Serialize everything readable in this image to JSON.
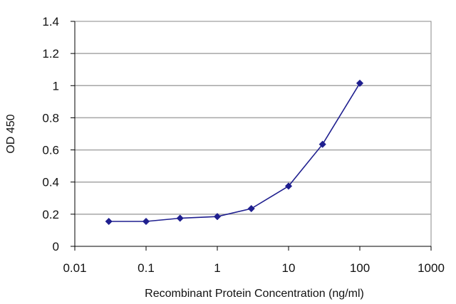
{
  "chart_data": {
    "type": "line",
    "title": "",
    "xlabel": "Recombinant Protein Concentration (ng/ml)",
    "ylabel": "OD 450",
    "xscale": "log",
    "xlim": [
      0.01,
      1000
    ],
    "ylim": [
      0,
      1.4
    ],
    "x_ticks": [
      {
        "value": 0.01,
        "label": "0.01"
      },
      {
        "value": 0.1,
        "label": "0.1"
      },
      {
        "value": 1,
        "label": "1"
      },
      {
        "value": 10,
        "label": "10"
      },
      {
        "value": 100,
        "label": "100"
      },
      {
        "value": 1000,
        "label": "1000"
      }
    ],
    "y_ticks": [
      {
        "value": 0,
        "label": "0"
      },
      {
        "value": 0.2,
        "label": "0.2"
      },
      {
        "value": 0.4,
        "label": "0.4"
      },
      {
        "value": 0.6,
        "label": "0.6"
      },
      {
        "value": 0.8,
        "label": "0.8"
      },
      {
        "value": 1,
        "label": "1"
      },
      {
        "value": 1.2,
        "label": "1.2"
      },
      {
        "value": 1.4,
        "label": "1.4"
      }
    ],
    "grid": "horizontal",
    "legend": "none",
    "series": [
      {
        "x": [
          0.03,
          0.1,
          0.3,
          1,
          3,
          10,
          30,
          100
        ],
        "y": [
          0.155,
          0.155,
          0.175,
          0.185,
          0.235,
          0.375,
          0.635,
          1.015
        ],
        "color": "#1f1f8f",
        "marker": "diamond"
      }
    ],
    "colors": {
      "plot_border": "#888888",
      "gridline": "#a6a6a6",
      "axis": "#000000",
      "series": "#1f1f8f"
    }
  }
}
